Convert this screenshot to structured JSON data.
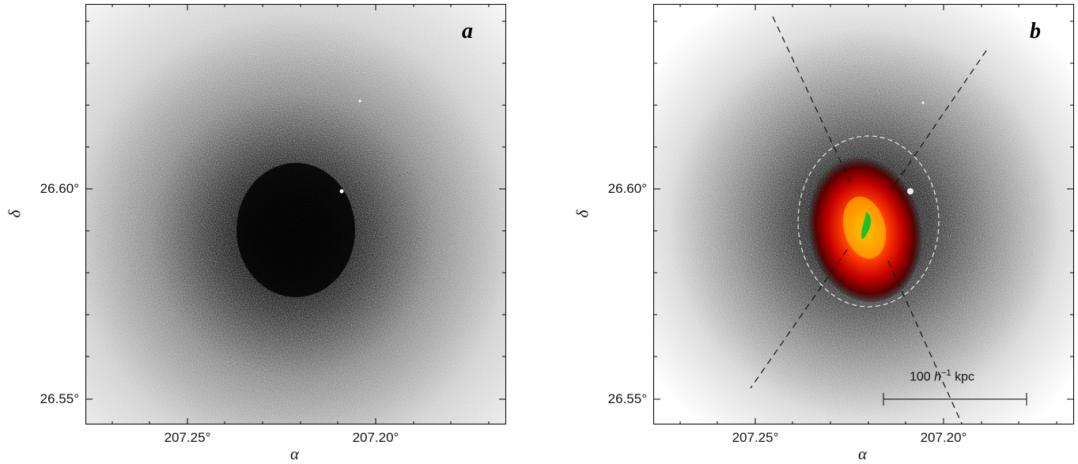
{
  "panels": [
    {
      "id": "a",
      "label": "a",
      "y_ticks": [
        "26.60°",
        "26.55°"
      ],
      "x_ticks": [
        "207.25°",
        "207.20°"
      ],
      "y_axis_name": "δ",
      "x_axis_name": "α",
      "colormap": "grayscale-inverted",
      "overlays": []
    },
    {
      "id": "b",
      "label": "b",
      "y_ticks": [
        "26.60°",
        "26.55°"
      ],
      "x_ticks": [
        "207.25°",
        "207.20°"
      ],
      "y_axis_name": "δ",
      "x_axis_name": "α",
      "colormap": "gray-to-heat",
      "overlays": [
        "dashed-ellipse",
        "dashed-sector-lines",
        "scale-bar"
      ],
      "scale_bar": {
        "value": "100",
        "unit_prefix": "h",
        "unit_exp": "−1",
        "unit": "kpc"
      }
    }
  ]
}
